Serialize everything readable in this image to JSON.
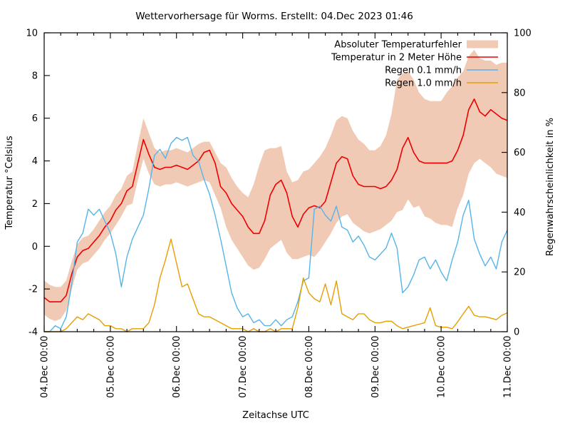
{
  "chart_data": {
    "type": "line",
    "title": "Wettervorhersage für Worms. Erstellt: 04.Dec 2023 01:46",
    "xlabel": "Zeitachse UTC",
    "ylabel_left": "Temperatur °Celsius",
    "ylabel_right": "Regenwahrscheinlichkeit in %",
    "x_hours": {
      "start": 0,
      "end": 168,
      "step": 2
    },
    "x_tick_labels": [
      "04.Dec 00:00",
      "05.Dec 00:00",
      "06.Dec 00:00",
      "07.Dec 00:00",
      "08.Dec 00:00",
      "09.Dec 00:00",
      "10.Dec 00:00",
      "11.Dec 00:00"
    ],
    "x_minor_tick_hours": 6,
    "y_left": {
      "min": -4,
      "max": 10,
      "ticks": [
        -4,
        -2,
        0,
        2,
        4,
        6,
        8,
        10
      ]
    },
    "y_right": {
      "min": 0,
      "max": 100,
      "ticks": [
        0,
        20,
        40,
        60,
        80,
        100
      ]
    },
    "grid": "off",
    "legend_position": "top-right-inside",
    "colors": {
      "band": "#f1cab6",
      "temperature": "#ee0000",
      "rain01": "#56b4e9",
      "rain10": "#e69f00",
      "axis": "#000000"
    },
    "series": [
      {
        "name": "Absoluter Temperaturfehler",
        "type": "band",
        "axis": "left",
        "color": "#f1cab6",
        "upper": [
          -1.6,
          -1.8,
          -1.9,
          -1.9,
          -1.6,
          -0.7,
          0.1,
          0.4,
          0.5,
          0.8,
          1.2,
          1.6,
          1.9,
          2.4,
          2.7,
          3.3,
          3.5,
          4.8,
          6.0,
          5.3,
          4.6,
          4.4,
          4.5,
          4.5,
          4.6,
          4.5,
          4.4,
          4.6,
          4.8,
          4.9,
          4.9,
          4.4,
          3.9,
          3.7,
          3.2,
          2.8,
          2.5,
          2.3,
          2.9,
          3.8,
          4.5,
          4.6,
          4.6,
          4.7,
          3.5,
          3.0,
          3.1,
          3.5,
          3.6,
          3.9,
          4.2,
          4.6,
          5.2,
          5.9,
          6.1,
          6.0,
          5.4,
          5.0,
          4.8,
          4.5,
          4.5,
          4.7,
          5.2,
          6.2,
          7.8,
          8.1,
          8.2,
          7.8,
          7.2,
          6.9,
          6.8,
          6.8,
          6.8,
          7.2,
          7.5,
          7.9,
          8.2,
          8.9,
          9.2,
          8.8,
          8.7,
          8.7,
          8.5,
          8.6,
          8.6
        ],
        "lower": [
          -3.2,
          -3.4,
          -3.5,
          -3.4,
          -3.0,
          -2.0,
          -1.1,
          -0.8,
          -0.7,
          -0.4,
          -0.1,
          0.3,
          0.6,
          1.0,
          1.4,
          1.9,
          2.0,
          3.1,
          4.1,
          3.4,
          2.9,
          2.8,
          2.9,
          2.9,
          3.0,
          2.9,
          2.8,
          2.9,
          3.0,
          3.1,
          3.0,
          2.4,
          1.8,
          0.9,
          0.3,
          -0.1,
          -0.5,
          -0.9,
          -1.1,
          -1.0,
          -0.6,
          -0.1,
          0.1,
          0.3,
          -0.3,
          -0.6,
          -0.6,
          -0.5,
          -0.4,
          -0.5,
          -0.2,
          0.2,
          0.6,
          1.1,
          1.4,
          1.5,
          1.1,
          0.9,
          0.7,
          0.6,
          0.7,
          0.8,
          1.0,
          1.2,
          1.6,
          1.7,
          2.2,
          1.8,
          1.9,
          1.4,
          1.3,
          1.1,
          1.0,
          1.0,
          0.9,
          1.8,
          2.4,
          3.4,
          3.9,
          4.1,
          3.9,
          3.7,
          3.4,
          3.3,
          3.2
        ]
      },
      {
        "name": "Temperatur in 2 Meter Höhe",
        "type": "line",
        "axis": "left",
        "color": "#ee0000",
        "width": 1.6,
        "values": [
          -2.4,
          -2.6,
          -2.6,
          -2.6,
          -2.3,
          -1.3,
          -0.5,
          -0.2,
          -0.1,
          0.2,
          0.5,
          0.9,
          1.2,
          1.7,
          2.0,
          2.6,
          2.8,
          3.9,
          5.0,
          4.3,
          3.7,
          3.6,
          3.7,
          3.7,
          3.8,
          3.7,
          3.6,
          3.8,
          4.0,
          4.4,
          4.5,
          3.9,
          2.8,
          2.5,
          2.0,
          1.7,
          1.4,
          0.9,
          0.6,
          0.6,
          1.2,
          2.4,
          2.9,
          3.1,
          2.5,
          1.4,
          0.9,
          1.5,
          1.8,
          1.9,
          1.8,
          2.1,
          3.0,
          3.9,
          4.2,
          4.1,
          3.3,
          2.9,
          2.8,
          2.8,
          2.8,
          2.7,
          2.8,
          3.1,
          3.6,
          4.6,
          5.1,
          4.4,
          4.0,
          3.9,
          3.9,
          3.9,
          3.9,
          3.9,
          4.0,
          4.5,
          5.2,
          6.4,
          6.9,
          6.3,
          6.1,
          6.4,
          6.2,
          6.0,
          5.9
        ]
      },
      {
        "name": "Regen 0.1 mm/h",
        "type": "line",
        "axis": "right",
        "color": "#56b4e9",
        "width": 1.4,
        "values": [
          0,
          0,
          2,
          1,
          5,
          16,
          30,
          33,
          41,
          39,
          41,
          37,
          33,
          26,
          15,
          25,
          31,
          35,
          39,
          48,
          59,
          61,
          58,
          63,
          65,
          64,
          65,
          59,
          57,
          51,
          46,
          39,
          31,
          22,
          13,
          8,
          5,
          6,
          3,
          4,
          2,
          2,
          4,
          2,
          4,
          5,
          10,
          17,
          18,
          41,
          42,
          39,
          37,
          42,
          35,
          34,
          30,
          32,
          29,
          25,
          24,
          26,
          28,
          33,
          28,
          13,
          15,
          19,
          24,
          25,
          21,
          24,
          20,
          17,
          24,
          30,
          39,
          44,
          31,
          26,
          22,
          25,
          21,
          30,
          34
        ]
      },
      {
        "name": "Regen 1.0 mm/h",
        "type": "line",
        "axis": "right",
        "color": "#e69f00",
        "width": 1.4,
        "values": [
          0,
          0,
          0,
          0,
          1,
          3,
          5,
          4,
          6,
          5,
          4,
          2,
          2,
          1,
          1,
          0,
          1,
          1,
          1,
          3,
          9,
          18,
          24,
          31,
          23,
          15,
          16,
          11,
          6,
          5,
          5,
          4,
          3,
          2,
          1,
          1,
          1,
          0,
          1,
          0,
          0,
          1,
          0,
          1,
          1,
          1,
          8,
          18,
          13,
          11,
          10,
          16,
          9,
          17,
          6,
          5,
          4,
          6,
          6,
          4,
          3,
          3,
          3.5,
          3.5,
          2,
          1,
          1.5,
          2,
          2.5,
          3,
          8,
          2,
          1.5,
          1.5,
          1,
          3.3,
          6,
          8.5,
          5.5,
          5,
          5,
          4.5,
          4,
          5.5,
          6.3
        ]
      }
    ]
  }
}
